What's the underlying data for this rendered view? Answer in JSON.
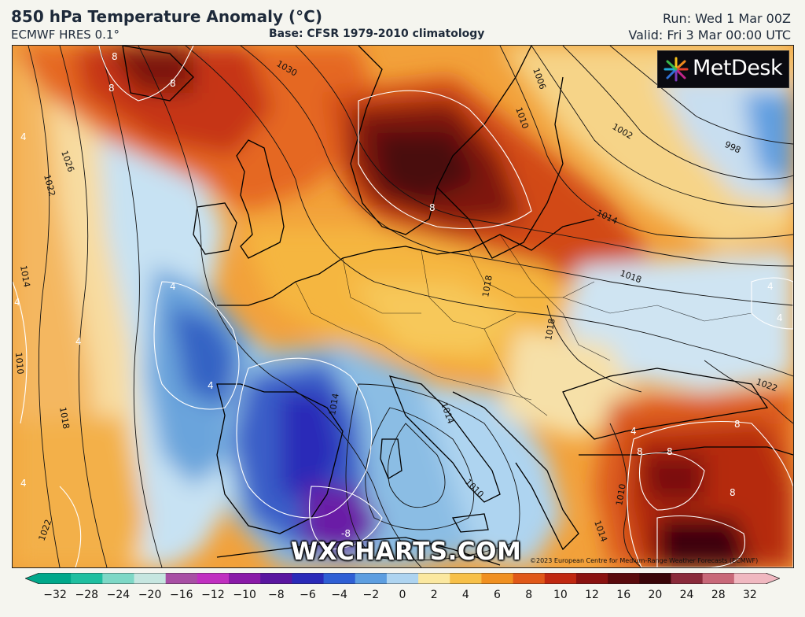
{
  "header": {
    "title": "850 hPa Temperature Anomaly (°C)",
    "model": "ECMWF HRES 0.1°",
    "base": "Base: CFSR 1979-2010 climatology",
    "run": "Run: Wed 1 Mar 00Z",
    "valid": "Valid: Fri 3 Mar 00:00 UTC"
  },
  "logo": {
    "text": "MetDesk"
  },
  "watermark": {
    "text": "WXCHARTS.COM"
  },
  "copyright": "©2023 European Centre for Medium-Range Weather Forecasts (ECMWF)",
  "isobar_labels": [
    "1030",
    "1026",
    "1022",
    "1014",
    "1010",
    "1018",
    "1022",
    "1006",
    "1010",
    "1002",
    "998",
    "1014",
    "1018",
    "1018",
    "1010",
    "1014",
    "1014",
    "1010",
    "1014",
    "1018",
    "1022"
  ],
  "anomaly_labels": [
    "8",
    "8",
    "8",
    "8",
    "4",
    "4",
    "4",
    "4",
    "4",
    "4",
    "4",
    "8",
    "8",
    "8",
    "8",
    "-8",
    "4",
    "4"
  ],
  "colorbar": {
    "ticks": [
      "−32",
      "−28",
      "−24",
      "−20",
      "−16",
      "−12",
      "−10",
      "−8",
      "−6",
      "−4",
      "−2",
      "0",
      "2",
      "4",
      "6",
      "8",
      "10",
      "12",
      "16",
      "20",
      "24",
      "28",
      "32"
    ],
    "colors": [
      "#00a88a",
      "#1fbfa0",
      "#7ed8c6",
      "#c6e6e0",
      "#a84fa4",
      "#c02fc0",
      "#8a1aa8",
      "#5a16a0",
      "#2a2ab8",
      "#2f5fd4",
      "#5d9ee0",
      "#aed4f0",
      "#fbe8a0",
      "#f7c048",
      "#f09020",
      "#e05818",
      "#c02810",
      "#8a1210",
      "#5a0a0c",
      "#3a0508",
      "#8a2a3a",
      "#c86878",
      "#f0b8c0"
    ]
  },
  "colors": {
    "accent": "#1e2a3a",
    "coastline": "#000000",
    "isobar": "#111111",
    "contour": "#ffffff"
  }
}
